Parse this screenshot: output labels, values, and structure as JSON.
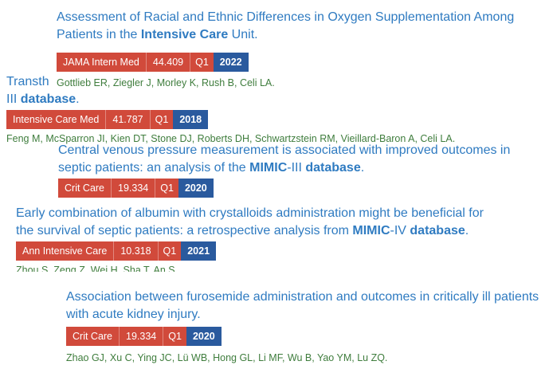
{
  "articles": [
    {
      "title_parts": [
        "Assessment of Racial and Ethnic Differences in Oxygen Supplementation Among Patients in the ",
        "Intensive Care",
        " Unit."
      ],
      "journal": "JAMA Intern Med",
      "impact_factor": "44.409",
      "quartile": "Q1",
      "year": "2022",
      "authors": "Gottlieb ER, Ziegler J, Morley K, Rush B, Celi LA."
    },
    {
      "title_parts": [
        "Transth",
        "III ",
        "database",
        "."
      ],
      "journal": "Intensive Care Med",
      "impact_factor": "41.787",
      "quartile": "Q1",
      "year": "2018",
      "authors": "Feng M, McSparron JI, Kien DT, Stone DJ, Roberts DH, Schwartzstein RM, Vieillard-Baron A, Celi LA."
    },
    {
      "title_parts": [
        "Central venous pressure measurement is associated with improved outcomes in septic patients: an analysis of the ",
        "MIMIC",
        "-III ",
        "database",
        "."
      ],
      "journal": "Crit Care",
      "impact_factor": "19.334",
      "quartile": "Q1",
      "year": "2020",
      "authors": ""
    },
    {
      "title_parts": [
        "Early combination of albumin with crystalloids administration might be beneficial for the survival of septic patients: a retrospective analysis from ",
        "MIMIC",
        "-IV ",
        "database",
        "."
      ],
      "journal": "Ann Intensive Care",
      "impact_factor": "10.318",
      "quartile": "Q1",
      "year": "2021",
      "authors": "Zhou S, Zeng Z, Wei H, Sha T, An S."
    },
    {
      "title_parts": [
        "Association between furosemide administration and outcomes in critically ill patients with acute kidney injury."
      ],
      "journal": "Crit Care",
      "impact_factor": "19.334",
      "quartile": "Q1",
      "year": "2020",
      "authors": "Zhao GJ, Xu C, Ying JC, Lü WB, Hong GL, Li MF, Wu B, Yao YM, Lu ZQ."
    }
  ],
  "colors": {
    "title": "#2f7bc1",
    "badge_red": "#d14a3b",
    "badge_blue": "#2a5a9e",
    "authors": "#3f7d3d"
  }
}
